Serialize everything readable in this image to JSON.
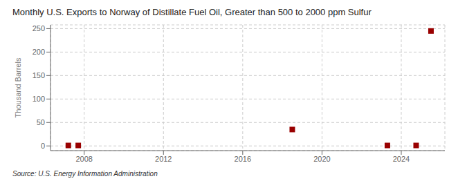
{
  "chart_data": {
    "type": "scatter",
    "title": "Monthly U.S. Exports to Norway of Distillate Fuel Oil, Greater than 500 to 2000 ppm Sulfur",
    "ylabel": "Thousand Barrels",
    "annotation": "Source: U.S. Energy Information Administration",
    "x": [
      2007.2,
      2007.7,
      2018.5,
      2023.3,
      2024.75,
      2025.5
    ],
    "values": [
      1,
      1,
      35,
      1,
      1,
      245
    ],
    "color": "#990000",
    "marker": "square",
    "xlim": [
      2006.3,
      2026.2
    ],
    "xticks": [
      2008,
      2012,
      2016,
      2020,
      2024
    ],
    "ylim": [
      -10,
      258
    ],
    "yticks": [
      0,
      50,
      100,
      150,
      200,
      250
    ],
    "grid": true
  }
}
